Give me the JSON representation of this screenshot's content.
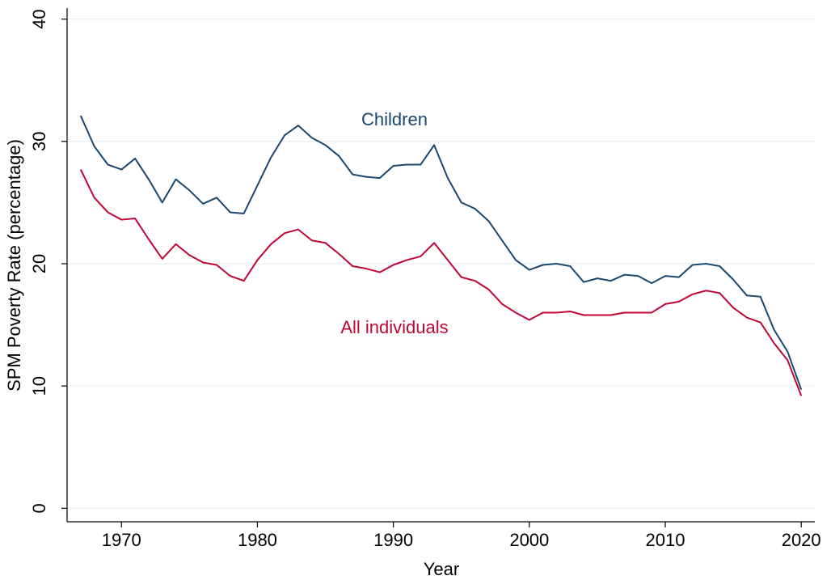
{
  "chart_data": {
    "type": "line",
    "y_label": "SPM Poverty Rate (percentage)",
    "x_label": "Year",
    "x": [
      1967,
      1968,
      1969,
      1970,
      1971,
      1972,
      1973,
      1974,
      1975,
      1976,
      1977,
      1978,
      1979,
      1980,
      1981,
      1982,
      1983,
      1984,
      1985,
      1986,
      1987,
      1988,
      1989,
      1990,
      1991,
      1992,
      1993,
      1994,
      1995,
      1996,
      1997,
      1998,
      1999,
      2000,
      2001,
      2002,
      2003,
      2004,
      2005,
      2006,
      2007,
      2008,
      2009,
      2010,
      2011,
      2012,
      2013,
      2014,
      2015,
      2016,
      2017,
      2018,
      2019,
      2020
    ],
    "series": [
      {
        "name": "Children",
        "color": "#1a476f",
        "values": [
          32.1,
          29.6,
          28.1,
          27.7,
          28.6,
          26.9,
          25.0,
          26.9,
          26.0,
          24.9,
          25.4,
          24.2,
          24.1,
          26.4,
          28.7,
          30.5,
          31.3,
          30.3,
          29.7,
          28.8,
          27.3,
          27.1,
          27.0,
          28.0,
          28.1,
          28.1,
          29.7,
          27.0,
          25.0,
          24.5,
          23.5,
          21.9,
          20.3,
          19.5,
          19.9,
          20.0,
          19.8,
          18.5,
          18.8,
          18.6,
          19.1,
          19.0,
          18.4,
          19.0,
          18.9,
          19.9,
          20.0,
          19.8,
          18.7,
          17.4,
          17.3,
          14.6,
          12.8,
          9.7
        ]
      },
      {
        "name": "All individuals",
        "color": "#c10534",
        "values": [
          27.7,
          25.4,
          24.2,
          23.6,
          23.7,
          22.0,
          20.4,
          21.6,
          20.7,
          20.1,
          19.9,
          19.0,
          18.6,
          20.3,
          21.6,
          22.5,
          22.8,
          21.9,
          21.7,
          20.8,
          19.8,
          19.6,
          19.3,
          19.9,
          20.3,
          20.6,
          21.7,
          20.3,
          18.9,
          18.6,
          17.9,
          16.7,
          16.0,
          15.4,
          16.0,
          16.0,
          16.1,
          15.8,
          15.8,
          15.8,
          16.0,
          16.0,
          16.0,
          16.7,
          16.9,
          17.5,
          17.8,
          17.6,
          16.4,
          15.6,
          15.2,
          13.5,
          12.1,
          9.2
        ]
      }
    ],
    "xlim": [
      1966,
      2021
    ],
    "xticks": [
      1970,
      1980,
      1990,
      2000,
      2010,
      2020
    ],
    "ylim": [
      -1.1,
      40.9
    ],
    "yticks": [
      0,
      10,
      20,
      30,
      40
    ],
    "grid": true
  }
}
